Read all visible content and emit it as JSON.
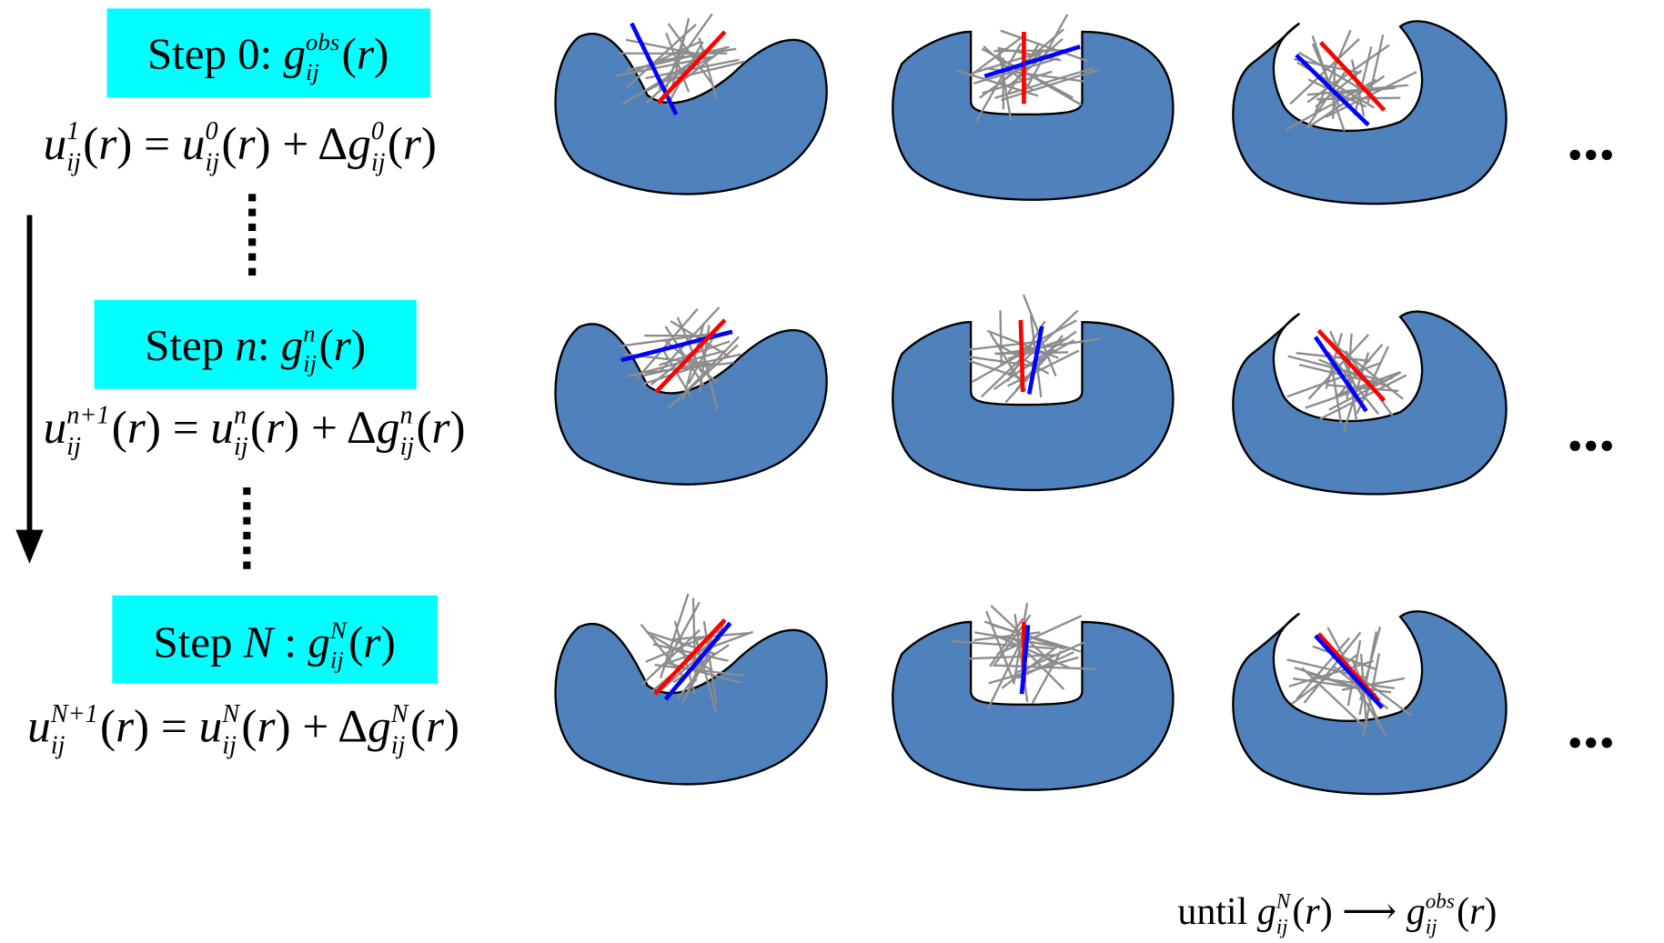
{
  "steps": [
    {
      "label": [
        {
          "text": "Step 0: "
        },
        {
          "text": "g",
          "italic": true
        },
        {
          "sup": "obs",
          "sub": "ij"
        },
        {
          "text": "("
        },
        {
          "text": "r",
          "italic": true
        },
        {
          "text": ")"
        }
      ],
      "update": [
        {
          "text": "u",
          "italic": true
        },
        {
          "sup": "1",
          "sub": "ij"
        },
        {
          "text": "("
        },
        {
          "text": "r",
          "italic": true
        },
        {
          "text": ") = "
        },
        {
          "text": "u",
          "italic": true
        },
        {
          "sup": "0",
          "sub": "ij"
        },
        {
          "text": "("
        },
        {
          "text": "r",
          "italic": true
        },
        {
          "text": ") + Δ"
        },
        {
          "text": "g",
          "italic": true
        },
        {
          "sup": "0",
          "sub": "ij"
        },
        {
          "text": "("
        },
        {
          "text": "r",
          "italic": true
        },
        {
          "text": ")"
        }
      ]
    },
    {
      "label": [
        {
          "text": "Step "
        },
        {
          "text": "n",
          "italic": true
        },
        {
          "text": ": "
        },
        {
          "text": "g",
          "italic": true
        },
        {
          "sup": "n",
          "sub": "ij"
        },
        {
          "text": "("
        },
        {
          "text": "r",
          "italic": true
        },
        {
          "text": ")"
        }
      ],
      "update": [
        {
          "text": "u",
          "italic": true
        },
        {
          "sup": "n+1",
          "sub": "ij"
        },
        {
          "text": "("
        },
        {
          "text": "r",
          "italic": true
        },
        {
          "text": ") = "
        },
        {
          "text": "u",
          "italic": true
        },
        {
          "sup": "n",
          "sub": "ij"
        },
        {
          "text": "("
        },
        {
          "text": "r",
          "italic": true
        },
        {
          "text": ") + Δ"
        },
        {
          "text": "g",
          "italic": true
        },
        {
          "sup": "n",
          "sub": "ij"
        },
        {
          "text": "("
        },
        {
          "text": "r",
          "italic": true
        },
        {
          "text": ")"
        }
      ]
    },
    {
      "label": [
        {
          "text": "Step "
        },
        {
          "text": "N",
          "italic": true
        },
        {
          "text": " : "
        },
        {
          "text": "g",
          "italic": true
        },
        {
          "sup": "N",
          "sub": "ij"
        },
        {
          "text": "("
        },
        {
          "text": "r",
          "italic": true
        },
        {
          "text": ")"
        }
      ],
      "update": [
        {
          "text": "u",
          "italic": true
        },
        {
          "sup": "N+1",
          "sub": "ij"
        },
        {
          "text": "("
        },
        {
          "text": "r",
          "italic": true
        },
        {
          "text": ") = "
        },
        {
          "text": "u",
          "italic": true
        },
        {
          "sup": "N",
          "sub": "ij"
        },
        {
          "text": "("
        },
        {
          "text": "r",
          "italic": true
        },
        {
          "text": ") + Δ"
        },
        {
          "text": "g",
          "italic": true
        },
        {
          "sup": "N",
          "sub": "ij"
        },
        {
          "text": "("
        },
        {
          "text": "r",
          "italic": true
        },
        {
          "text": ")"
        }
      ]
    }
  ],
  "ellipsis": "...",
  "until": [
    {
      "text": "until "
    },
    {
      "text": "g",
      "italic": true
    },
    {
      "sup": "N",
      "sub": "ij"
    },
    {
      "text": "("
    },
    {
      "text": "r",
      "italic": true
    },
    {
      "text": ") ⟶ "
    },
    {
      "text": "g",
      "italic": true
    },
    {
      "sup": "obs",
      "sub": "ij"
    },
    {
      "text": "("
    },
    {
      "text": "r",
      "italic": true
    },
    {
      "text": ")"
    }
  ]
}
